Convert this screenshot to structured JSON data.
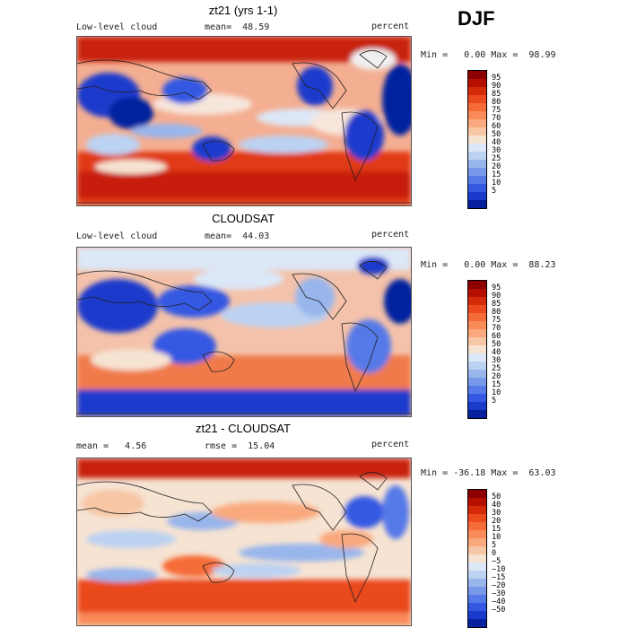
{
  "season": "DJF",
  "panels": [
    {
      "title": "zt21 (yrs 1-1)",
      "left_label": "Low-level cloud",
      "mid_label": "mean=  48.59",
      "units": "percent",
      "minmax": "Min =   0.00 Max =  98.99",
      "colorbar": {
        "colors": [
          "#8c0000",
          "#b50f00",
          "#d42a0a",
          "#ea4a1c",
          "#f56c38",
          "#f88b58",
          "#f9a97d",
          "#f7c6a5",
          "#f6e3d2",
          "#dce7f7",
          "#bcd2f2",
          "#99b6ec",
          "#7899ea",
          "#5679e8",
          "#3458e2",
          "#1a3acc",
          "#06209e"
        ],
        "labels": [
          "95",
          "90",
          "85",
          "80",
          "75",
          "70",
          "60",
          "50",
          "40",
          "30",
          "25",
          "20",
          "15",
          "10",
          "5"
        ]
      }
    },
    {
      "title": "CLOUDSAT",
      "left_label": "Low-level cloud",
      "mid_label": "mean=  44.03",
      "units": "percent",
      "minmax": "Min =   0.00 Max =  88.23",
      "colorbar": {
        "colors": [
          "#8c0000",
          "#b50f00",
          "#d42a0a",
          "#ea4a1c",
          "#f56c38",
          "#f88b58",
          "#f9a97d",
          "#f7c6a5",
          "#f6e3d2",
          "#dce7f7",
          "#bcd2f2",
          "#99b6ec",
          "#7899ea",
          "#5679e8",
          "#3458e2",
          "#1a3acc",
          "#06209e"
        ],
        "labels": [
          "95",
          "90",
          "85",
          "80",
          "75",
          "70",
          "60",
          "50",
          "40",
          "30",
          "25",
          "20",
          "15",
          "10",
          "5"
        ]
      }
    },
    {
      "title": "zt21 - CLOUDSAT",
      "left_label": "mean =   4.56",
      "mid_label": "rmse =  15.04",
      "units": "percent",
      "minmax": "Min = -36.18 Max =  63.03",
      "colorbar": {
        "colors": [
          "#8c0000",
          "#b50f00",
          "#d42a0a",
          "#ea4a1c",
          "#f56c38",
          "#f88b58",
          "#f9a97d",
          "#f7c6a5",
          "#f6e3d2",
          "#dce7f7",
          "#bcd2f2",
          "#99b6ec",
          "#7899ea",
          "#5679e8",
          "#3458e2",
          "#1a3acc",
          "#06209e"
        ],
        "labels": [
          "50",
          "40",
          "30",
          "20",
          "15",
          "10",
          "5",
          "0",
          "−5",
          "−10",
          "−15",
          "−20",
          "−30",
          "−40",
          "−50"
        ]
      }
    }
  ]
}
